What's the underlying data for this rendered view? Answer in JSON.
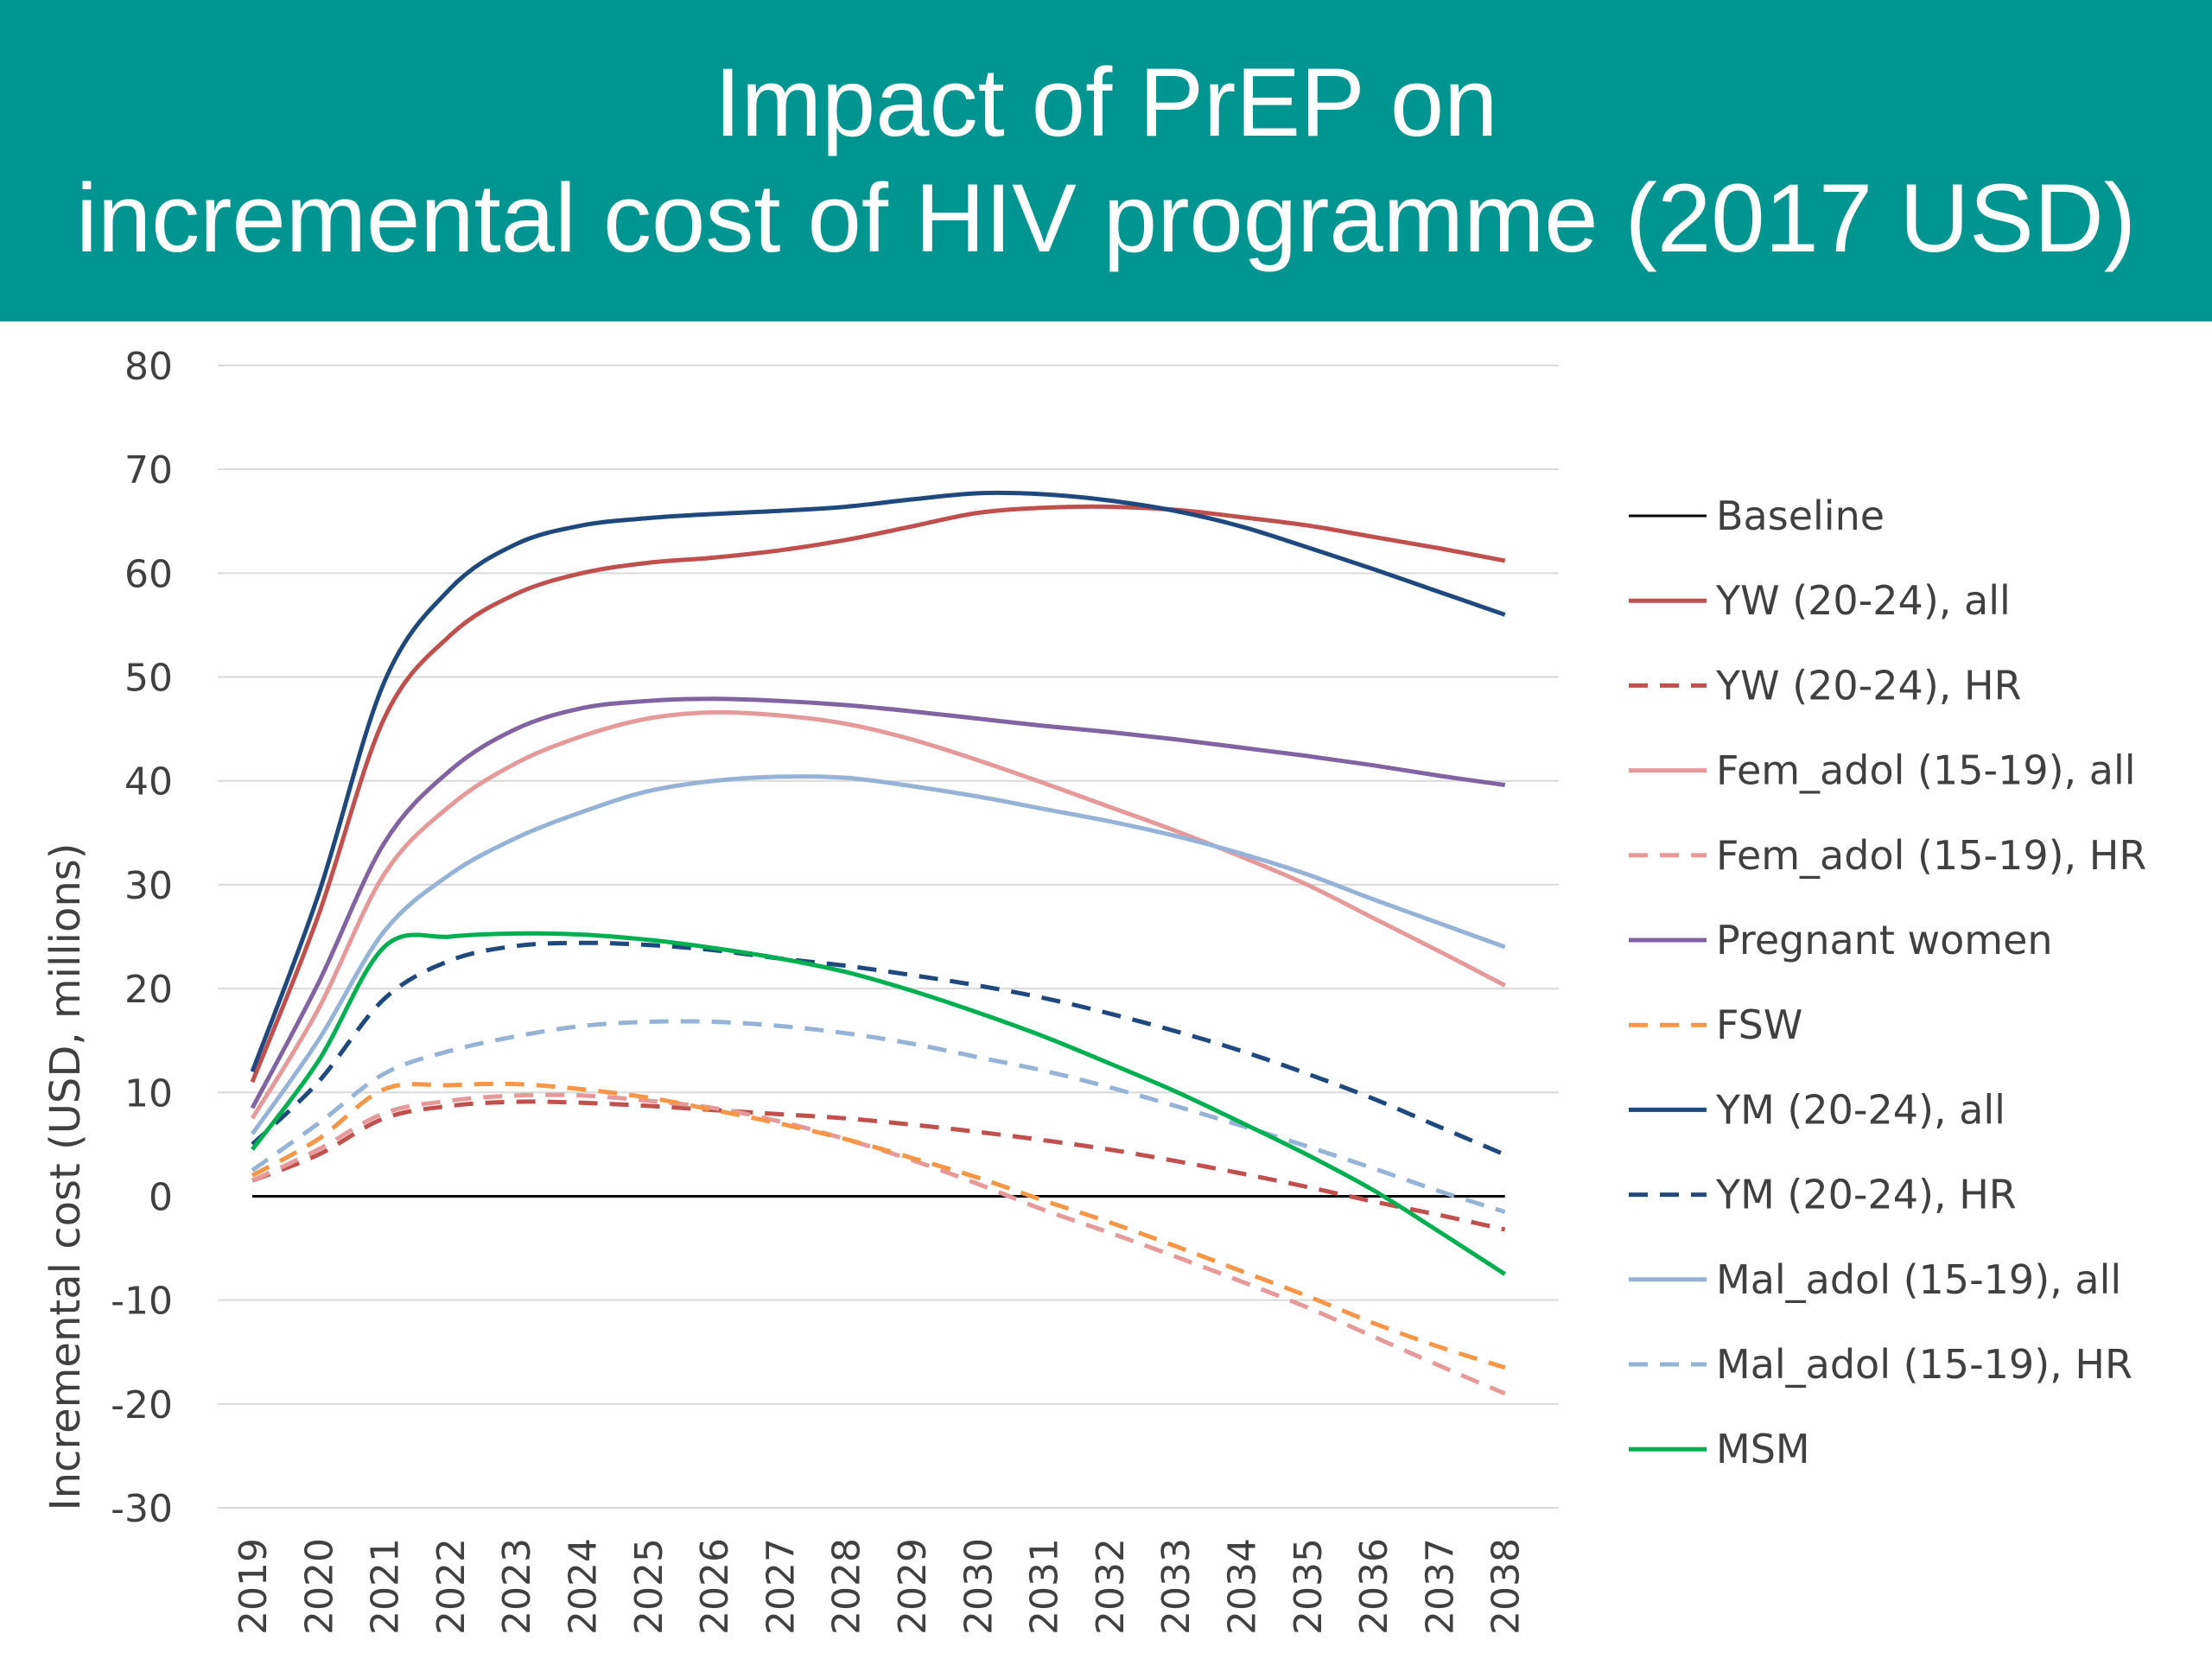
{
  "title": {
    "line1": "Impact of PrEP on",
    "line2": "incremental cost of HIV programme (2017 USD)"
  },
  "colors": {
    "title_background": "#009591",
    "title_text": "#ffffff"
  },
  "chart_data": {
    "type": "line",
    "title": "Impact of PrEP on incremental cost of HIV programme (2017 USD)",
    "xlabel": "",
    "ylabel": "Incremental cost (USD, millions)",
    "ylim": [
      -30,
      80
    ],
    "yticks": [
      80,
      70,
      60,
      50,
      40,
      30,
      20,
      10,
      0,
      -10,
      -20,
      -30
    ],
    "grid": true,
    "legend_position": "right",
    "categories": [
      "2019",
      "2020",
      "2021",
      "2022",
      "2023",
      "2024",
      "2025",
      "2026",
      "2027",
      "2028",
      "2029",
      "2030",
      "2031",
      "2032",
      "2033",
      "2034",
      "2035",
      "2036",
      "2037",
      "2038"
    ],
    "series": [
      {
        "name": "Baseline",
        "color": "#000000",
        "dash": "solid",
        "values": [
          0,
          0,
          0,
          0,
          0,
          0,
          0,
          0,
          0,
          0,
          0,
          0,
          0,
          0,
          0,
          0,
          0,
          0,
          0,
          0
        ]
      },
      {
        "name": "YW (20-24), all",
        "color": "#c0504d",
        "dash": "solid",
        "values": [
          11,
          27,
          46,
          54,
          58,
          60,
          61,
          61.5,
          62.2,
          63.2,
          64.5,
          65.8,
          66.3,
          66.4,
          66.1,
          65.4,
          64.6,
          63.5,
          62.4,
          61.2
        ]
      },
      {
        "name": "YW (20-24), HR",
        "color": "#c0504d",
        "dash": "dashed",
        "values": [
          1.5,
          4,
          7.5,
          8.7,
          9.1,
          9,
          8.7,
          8.3,
          7.9,
          7.5,
          6.9,
          6.2,
          5.4,
          4.5,
          3.4,
          2.2,
          0.9,
          -0.5,
          -1.8,
          -3.2
        ]
      },
      {
        "name": "Fem_adol (15-19), all",
        "color": "#e6999b",
        "dash": "solid",
        "values": [
          7.5,
          18,
          31,
          37.6,
          41.7,
          44.3,
          46,
          46.6,
          46.3,
          45.5,
          44,
          42,
          39.8,
          37.5,
          35.2,
          32.7,
          30,
          26.8,
          23.6,
          20.3
        ]
      },
      {
        "name": "Fem_adol (15-19), HR",
        "color": "#e6999b",
        "dash": "dashed",
        "values": [
          1.5,
          4.5,
          8,
          9.2,
          9.7,
          9.7,
          9.2,
          8.5,
          7.2,
          5.5,
          3.5,
          1.2,
          -1.3,
          -3.5,
          -5.8,
          -8.2,
          -10.7,
          -13.5,
          -16.3,
          -19
        ]
      },
      {
        "name": "Pregnant women",
        "color": "#8064a2",
        "dash": "solid",
        "values": [
          8.5,
          20.5,
          34,
          41,
          45,
          47,
          47.7,
          47.9,
          47.7,
          47.3,
          46.7,
          46,
          45.3,
          44.7,
          44,
          43.2,
          42.4,
          41.5,
          40.5,
          39.6
        ]
      },
      {
        "name": "FSW",
        "color": "#f79646",
        "dash": "dashed",
        "values": [
          2,
          5.5,
          10.3,
          10.7,
          10.8,
          10.3,
          9.5,
          8.3,
          7,
          5.5,
          3.7,
          1.8,
          -0.4,
          -2.5,
          -4.8,
          -7.2,
          -9.6,
          -12.2,
          -14.5,
          -16.5
        ]
      },
      {
        "name": "YM (20-24), all",
        "color": "#1f497d",
        "dash": "solid",
        "values": [
          12,
          29,
          49.5,
          58.5,
          62.8,
          64.6,
          65.3,
          65.7,
          66,
          66.4,
          67.1,
          67.7,
          67.6,
          67,
          66,
          64.5,
          62.5,
          60.4,
          58.2,
          56
        ]
      },
      {
        "name": "YM (20-24), HR",
        "color": "#1f497d",
        "dash": "dashed",
        "values": [
          5,
          11,
          19,
          22.7,
          24.1,
          24.4,
          24.2,
          23.7,
          22.9,
          22.2,
          21.3,
          20.3,
          19.1,
          17.6,
          15.9,
          14,
          11.8,
          9.4,
          6.7,
          4
        ]
      },
      {
        "name": "Mal_adol (15-19), all",
        "color": "#95b3d7",
        "dash": "solid",
        "values": [
          6,
          15,
          25.5,
          31,
          34.5,
          37,
          39,
          40,
          40.4,
          40.3,
          39.5,
          38.5,
          37.3,
          36.1,
          34.7,
          33,
          31,
          28.6,
          26.3,
          24
        ]
      },
      {
        "name": "Mal_adol (15-19), HR",
        "color": "#95b3d7",
        "dash": "dashed",
        "values": [
          2.5,
          7,
          11.8,
          14,
          15.4,
          16.4,
          16.8,
          16.8,
          16.4,
          15.7,
          14.7,
          13.4,
          12.1,
          10.5,
          8.7,
          6.8,
          4.8,
          2.7,
          0.5,
          -1.5
        ]
      },
      {
        "name": "MSM",
        "color": "#00b050",
        "dash": "solid",
        "values": [
          4.5,
          13,
          24,
          25,
          25.3,
          25.2,
          24.7,
          23.9,
          22.9,
          21.6,
          19.8,
          17.7,
          15.4,
          12.8,
          10.1,
          7.1,
          4,
          0.6,
          -3.4,
          -7.5
        ]
      }
    ]
  }
}
